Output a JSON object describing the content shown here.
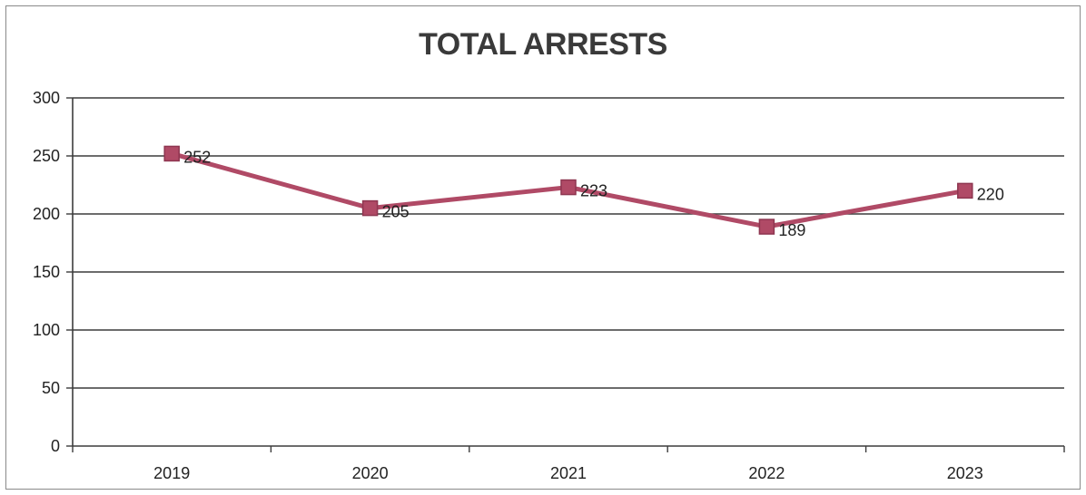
{
  "chart_data": {
    "type": "line",
    "title": "TOTAL ARRESTS",
    "categories": [
      "2019",
      "2020",
      "2021",
      "2022",
      "2023"
    ],
    "values": [
      252,
      205,
      223,
      189,
      220
    ],
    "data_labels": [
      "252",
      "205",
      "223",
      "189",
      "220"
    ],
    "ylim": [
      0,
      300
    ],
    "yticks": [
      0,
      50,
      100,
      150,
      200,
      250,
      300
    ],
    "xlabel": "",
    "ylabel": "",
    "grid": true,
    "legend": "none",
    "line_color": "#b04a66",
    "marker_color": "#b04a66",
    "marker_edge_color": "#8e3650",
    "marker": "square"
  }
}
